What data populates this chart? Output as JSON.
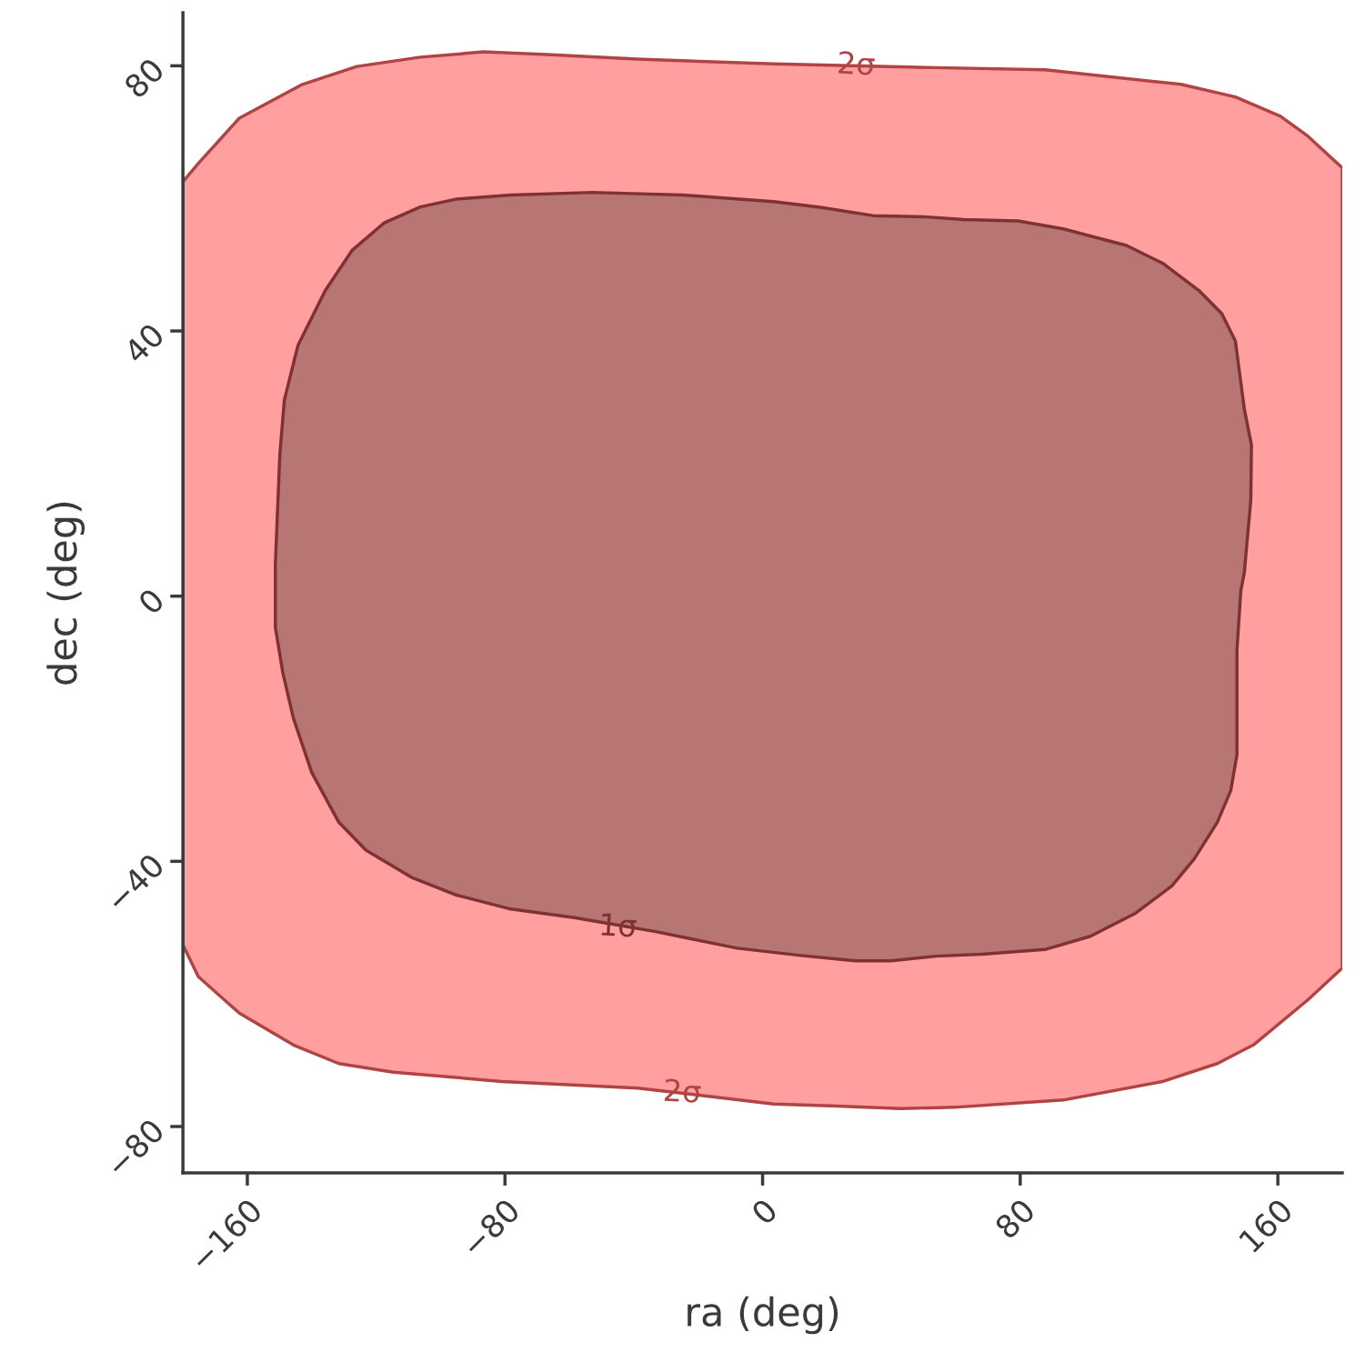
{
  "chart_data": {
    "type": "area",
    "xlabel": "ra (deg)",
    "ylabel": "dec (deg)",
    "xlim": [
      -180,
      180
    ],
    "ylim": [
      -87,
      88
    ],
    "xticks": [
      {
        "value": -160,
        "label": "−160"
      },
      {
        "value": -80,
        "label": "−80"
      },
      0,
      80,
      160
    ],
    "yticks": [
      {
        "value": -80,
        "label": "−80"
      },
      {
        "value": -40,
        "label": "−40"
      },
      0,
      40,
      80
    ],
    "grid": false,
    "series": [
      {
        "color": "#ff9f9f",
        "x": [
          -180,
          -175.2,
          -162.5,
          -142.9,
          -126.0,
          -106.3,
          -86.6,
          -66.9,
          -38.8,
          3.4,
          45.6,
          87.7,
          129.9,
          146.8,
          160.8,
          169.3,
          180,
          180,
          169.3,
          152.4,
          141.2,
          124.3,
          93.4,
          59.6,
          42.7,
          23.1,
          3.4,
          -38.8,
          -81.0,
          -114.7,
          -131.6,
          -145.7,
          -162.5,
          -175.2,
          -180
        ],
        "values": [
          62.5,
          65.3,
          72.1,
          77.2,
          79.9,
          81.3,
          82.1,
          81.7,
          81.0,
          80.3,
          79.8,
          79.4,
          77.2,
          75.3,
          72.4,
          69.4,
          64.6,
          -56.1,
          -60.9,
          -67.7,
          -70.5,
          -73.2,
          -76.0,
          -77.1,
          -77.3,
          -76.9,
          -76.6,
          -74.2,
          -73.2,
          -71.8,
          -70.5,
          -67.7,
          -62.9,
          -57.4,
          -52.6
        ]
      },
      {
        "color": "#b77574",
        "x": [
          -151.3,
          -149.9,
          -148.5,
          -144.3,
          -135.8,
          -127.4,
          -117.5,
          -106.3,
          -95.0,
          -78.2,
          -52.9,
          -24.7,
          3.4,
          17.4,
          34.3,
          51.2,
          62.4,
          79.3,
          93.4,
          113.0,
          124.3,
          135.5,
          142.6,
          146.8,
          149.6,
          151.8,
          151.6,
          149.6,
          148.5,
          147.3,
          147.3,
          145.4,
          141.2,
          134.1,
          127.1,
          115.9,
          101.8,
          87.7,
          68.1,
          54.0,
          39.9,
          28.7,
          11.8,
          -7.9,
          -33.2,
          -58.5,
          -78.2,
          -95.0,
          -109.1,
          -123.2,
          -131.6,
          -140.0,
          -145.7,
          -149.0,
          -151.3
        ],
        "values": [
          4.9,
          21.4,
          29.6,
          37.8,
          46.1,
          52.2,
          56.3,
          58.7,
          59.9,
          60.5,
          60.9,
          60.5,
          59.5,
          58.7,
          57.4,
          57.2,
          56.8,
          56.6,
          55.4,
          52.9,
          50.2,
          46.1,
          42.6,
          38.5,
          28.2,
          22.8,
          14.5,
          3.6,
          0.8,
          -8.1,
          -23.9,
          -29.3,
          -34.1,
          -39.6,
          -43.7,
          -47.8,
          -51.3,
          -53.3,
          -54.0,
          -54.3,
          -55.0,
          -55.0,
          -54.2,
          -53.1,
          -50.6,
          -48.5,
          -47.2,
          -45.1,
          -42.4,
          -38.3,
          -34.1,
          -26.6,
          -18.4,
          -11.5,
          -4.7
        ]
      }
    ],
    "annotations": [
      {
        "text": "2σ",
        "x": 29,
        "y": 80
      },
      {
        "text": "1σ",
        "x": -45,
        "y": -50
      },
      {
        "text": "2σ",
        "x": -25,
        "y": -75
      }
    ]
  }
}
